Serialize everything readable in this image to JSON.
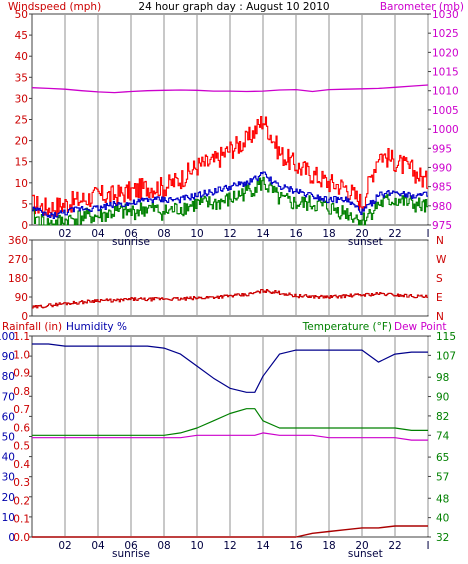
{
  "chart_data": [
    {
      "type": "line",
      "title": "24 hour graph day : August 10 2010",
      "left_label": "Windspeed (mph)",
      "right_label": "Barometer (mb)",
      "x_tick_labels": [
        "02",
        "04",
        "06",
        "08",
        "10",
        "12",
        "14",
        "16",
        "18",
        "20",
        "22",
        "I"
      ],
      "sunrise_label": "sunrise",
      "sunset_label": "sunset",
      "y_left": {
        "range": [
          0,
          50
        ],
        "ticks": [
          "0",
          "5",
          "10",
          "15",
          "20",
          "25",
          "30",
          "35",
          "40",
          "45",
          "50"
        ]
      },
      "y_right": {
        "range": [
          975,
          1030
        ],
        "ticks": [
          "975",
          "980",
          "985",
          "990",
          "995",
          "1000",
          "1005",
          "1010",
          "1015",
          "1020",
          "1025",
          "1030"
        ]
      },
      "colors": {
        "gust": "#ff0000",
        "average": "#0000c8",
        "speed": "#008000",
        "barometer": "#cc00cc",
        "left_axis": "#cc0000",
        "right_axis": "#cc00cc"
      },
      "grid": true,
      "series_hourly": {
        "x_hours": [
          0,
          1,
          2,
          3,
          4,
          5,
          6,
          7,
          8,
          9,
          10,
          11,
          12,
          13,
          14,
          15,
          16,
          17,
          18,
          19,
          20,
          21,
          22,
          23,
          24
        ],
        "gust": [
          5,
          4,
          5,
          6,
          7,
          7,
          8,
          9,
          9,
          11,
          14,
          15,
          18,
          20,
          25,
          17,
          14,
          12,
          10,
          9,
          5,
          17,
          15,
          13,
          10
        ],
        "average": [
          4,
          2,
          3,
          4,
          4,
          5,
          5,
          6,
          6,
          6,
          7,
          8,
          9,
          10,
          12,
          9,
          8,
          7,
          6,
          6,
          3,
          7,
          8,
          7,
          7
        ],
        "speed": [
          2,
          0,
          1,
          2,
          2,
          3,
          3,
          4,
          3,
          4,
          5,
          5,
          6,
          8,
          10,
          6,
          5,
          5,
          4,
          3,
          1,
          5,
          6,
          5,
          4
        ],
        "barometer": [
          1010.8,
          1010.6,
          1010.4,
          1010.0,
          1009.7,
          1009.5,
          1009.8,
          1010.0,
          1010.1,
          1010.2,
          1010.1,
          1009.9,
          1009.9,
          1009.8,
          1009.9,
          1010.2,
          1010.3,
          1009.8,
          1010.3,
          1010.4,
          1010.5,
          1010.6,
          1010.9,
          1011.2,
          1011.5
        ]
      }
    },
    {
      "type": "scatter",
      "y_ticks": [
        "0",
        "90",
        "180",
        "270",
        "360"
      ],
      "compass_labels": [
        "N",
        "W",
        "S",
        "E",
        "N"
      ],
      "y_range": [
        0,
        360
      ],
      "colors": {
        "direction": "#cc0000",
        "axis": "#cc0000",
        "compass": "#cc0000"
      },
      "series_hourly": {
        "x_hours": [
          0,
          1,
          2,
          3,
          4,
          5,
          6,
          7,
          8,
          9,
          10,
          11,
          12,
          13,
          14,
          15,
          16,
          17,
          18,
          19,
          20,
          21,
          22,
          23,
          24
        ],
        "direction": [
          40,
          50,
          60,
          65,
          75,
          72,
          80,
          78,
          82,
          80,
          85,
          90,
          95,
          100,
          120,
          110,
          95,
          92,
          90,
          95,
          100,
          105,
          100,
          95,
          90
        ]
      }
    },
    {
      "type": "line",
      "rainfall_label": "Rainfall (in)",
      "humidity_label": "Humidity %",
      "temperature_label": "Temperature (°F)",
      "dewpoint_label": "Dew Point",
      "y_humidity": {
        "range": [
          0,
          100
        ],
        "ticks": [
          "0",
          "10",
          "20",
          "30",
          "40",
          "50",
          "60",
          "70",
          "80",
          "90",
          "100"
        ]
      },
      "y_rain": {
        "range": [
          0,
          1.1
        ],
        "ticks": [
          "0.0",
          "0.1",
          "0.2",
          "0.3",
          "0.4",
          "0.5",
          "0.6",
          "0.7",
          "0.8",
          "0.9",
          "1.0",
          "1.1"
        ]
      },
      "y_temp": {
        "range": [
          32,
          115
        ],
        "ticks": [
          "32",
          "40",
          "48",
          "57",
          "65",
          "74",
          "82",
          "90",
          "98",
          "107",
          "115"
        ]
      },
      "colors": {
        "humidity": "#00008b",
        "temperature": "#008000",
        "dewpoint": "#cc00cc",
        "rainfall": "#aa0000",
        "rain_axis": "#cc0000",
        "humidity_axis": "#0000aa",
        "temp_axis": "#008000",
        "dew_label": "#cc00cc"
      },
      "series_hourly": {
        "x_hours": [
          0,
          1,
          2,
          3,
          4,
          5,
          6,
          7,
          8,
          9,
          10,
          11,
          12,
          13,
          13.5,
          14,
          15,
          16,
          17,
          18,
          19,
          20,
          21,
          22,
          23,
          24
        ],
        "humidity": [
          96,
          96,
          95,
          95,
          95,
          95,
          95,
          95,
          94,
          91,
          85,
          79,
          74,
          72,
          72,
          80,
          91,
          93,
          93,
          93,
          93,
          93,
          87,
          91,
          92,
          92
        ],
        "temperature": [
          74,
          74,
          74,
          74,
          74,
          74,
          74,
          74,
          74,
          75,
          77,
          80,
          83,
          85,
          85,
          80,
          77,
          77,
          77,
          77,
          77,
          77,
          77,
          77,
          76,
          76
        ],
        "dewpoint": [
          73,
          73,
          73,
          73,
          73,
          73,
          73,
          73,
          73,
          73,
          74,
          74,
          74,
          74,
          74,
          75,
          74,
          74,
          74,
          73,
          73,
          73,
          73,
          73,
          72,
          72
        ],
        "rainfall": [
          0,
          0,
          0,
          0,
          0,
          0,
          0,
          0,
          0,
          0,
          0,
          0,
          0,
          0,
          0,
          0,
          0,
          0,
          0.02,
          0.03,
          0.04,
          0.05,
          0.05,
          0.06,
          0.06,
          0.06
        ]
      }
    }
  ]
}
